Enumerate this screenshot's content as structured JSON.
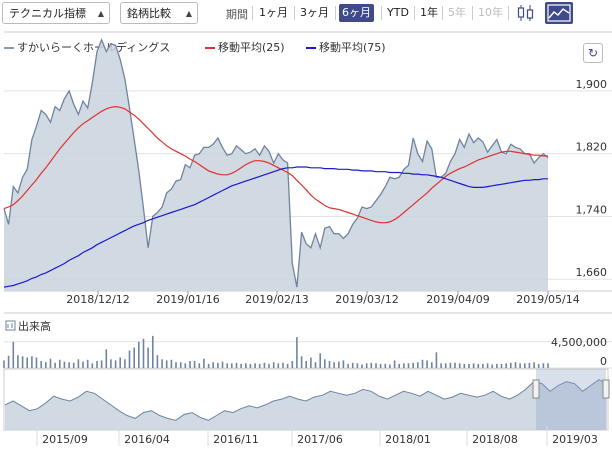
{
  "toolbar": {
    "technical_label": "テクニカル指標",
    "compare_label": "銘柄比較",
    "period_label": "期間",
    "periods": [
      "1ヶ月",
      "3ヶ月",
      "6ヶ月",
      "YTD",
      "1年",
      "5年",
      "10年"
    ],
    "active_period": "6ヶ月",
    "disabled_periods": [
      "5年",
      "10年"
    ],
    "chart_type_icons": [
      "candlestick-icon",
      "area-chart-icon"
    ],
    "active_chart_icon": "area-chart-icon",
    "accent": "#3e4a8a"
  },
  "legend": {
    "price": "すかいらーくホールディングス",
    "ma25": "移動平均(25)",
    "ma75": "移動平均(75)"
  },
  "volume_label": "出来高",
  "chart_data": [
    {
      "type": "area",
      "title": "",
      "x_tick_labels": [
        "2018/12/12",
        "2019/01/16",
        "2019/02/13",
        "2019/03/12",
        "2019/04/09",
        "2019/05/14"
      ],
      "y_tick_labels": [
        "1,660",
        "1,740",
        "1,820",
        "1,900"
      ],
      "ylim": [
        1645,
        1975
      ],
      "grid": true,
      "series": [
        {
          "name": "すかいらーくホールディングス",
          "color": "#8a9bb0",
          "values": [
            1750,
            1730,
            1778,
            1770,
            1790,
            1800,
            1838,
            1855,
            1875,
            1870,
            1860,
            1880,
            1875,
            1890,
            1900,
            1883,
            1870,
            1887,
            1878,
            1910,
            1950,
            1965,
            1950,
            1960,
            1958,
            1940,
            1915,
            1878,
            1838,
            1798,
            1750,
            1700,
            1740,
            1745,
            1752,
            1770,
            1775,
            1785,
            1787,
            1806,
            1802,
            1818,
            1820,
            1828,
            1828,
            1832,
            1840,
            1828,
            1818,
            1820,
            1830,
            1825,
            1820,
            1822,
            1826,
            1818,
            1830,
            1823,
            1808,
            1820,
            1812,
            1808,
            1680,
            1650,
            1720,
            1705,
            1700,
            1718,
            1700,
            1725,
            1727,
            1718,
            1718,
            1712,
            1718,
            1730,
            1738,
            1752,
            1750,
            1752,
            1760,
            1768,
            1778,
            1790,
            1788,
            1790,
            1800,
            1805,
            1840,
            1820,
            1810,
            1836,
            1826,
            1790,
            1790,
            1795,
            1810,
            1820,
            1838,
            1828,
            1845,
            1834,
            1840,
            1835,
            1822,
            1830,
            1838,
            1822,
            1820,
            1832,
            1828,
            1826,
            1820,
            1820,
            1808,
            1815,
            1820,
            1815
          ]
        },
        {
          "name": "移動平均(25)",
          "color": "#e03030",
          "values": [
            1750,
            1752,
            1755,
            1760,
            1766,
            1773,
            1780,
            1787,
            1795,
            1802,
            1810,
            1818,
            1826,
            1833,
            1840,
            1847,
            1853,
            1858,
            1862,
            1866,
            1870,
            1874,
            1877,
            1879,
            1880,
            1879,
            1877,
            1873,
            1869,
            1864,
            1858,
            1852,
            1846,
            1840,
            1835,
            1830,
            1826,
            1823,
            1820,
            1817,
            1813,
            1810,
            1806,
            1802,
            1798,
            1796,
            1794,
            1793,
            1793,
            1795,
            1798,
            1802,
            1806,
            1809,
            1811,
            1811,
            1810,
            1808,
            1805,
            1802,
            1799,
            1796,
            1792,
            1786,
            1780,
            1774,
            1767,
            1762,
            1758,
            1754,
            1751,
            1750,
            1749,
            1747,
            1745,
            1743,
            1741,
            1739,
            1737,
            1735,
            1733,
            1732,
            1732,
            1733,
            1736,
            1740,
            1745,
            1750,
            1755,
            1760,
            1765,
            1770,
            1776,
            1781,
            1786,
            1791,
            1795,
            1798,
            1801,
            1803,
            1806,
            1809,
            1812,
            1814,
            1816,
            1818,
            1820,
            1822,
            1823,
            1823,
            1822,
            1821,
            1820,
            1819,
            1818,
            1818,
            1817,
            1817
          ]
        },
        {
          "name": "移動平均(75)",
          "color": "#1a1acc",
          "values": [
            1650,
            1651,
            1652,
            1654,
            1656,
            1658,
            1661,
            1663,
            1666,
            1668,
            1671,
            1674,
            1677,
            1680,
            1684,
            1687,
            1690,
            1694,
            1697,
            1700,
            1704,
            1707,
            1710,
            1713,
            1716,
            1719,
            1722,
            1725,
            1728,
            1730,
            1732,
            1735,
            1737,
            1739,
            1741,
            1743,
            1745,
            1747,
            1749,
            1751,
            1753,
            1755,
            1758,
            1761,
            1764,
            1767,
            1770,
            1773,
            1776,
            1779,
            1781,
            1783,
            1785,
            1787,
            1789,
            1791,
            1793,
            1795,
            1797,
            1799,
            1801,
            1802,
            1802,
            1803,
            1803,
            1803,
            1802,
            1802,
            1802,
            1801,
            1801,
            1801,
            1800,
            1800,
            1800,
            1799,
            1799,
            1798,
            1798,
            1798,
            1797,
            1797,
            1797,
            1796,
            1796,
            1796,
            1795,
            1795,
            1794,
            1794,
            1793,
            1793,
            1792,
            1791,
            1790,
            1788,
            1786,
            1784,
            1782,
            1780,
            1778,
            1777,
            1777,
            1777,
            1778,
            1779,
            1780,
            1781,
            1782,
            1783,
            1784,
            1785,
            1786,
            1786,
            1787,
            1787,
            1788,
            1788
          ]
        }
      ]
    },
    {
      "type": "bar",
      "title": "出来高",
      "y_tick_labels": [
        "4,500,000",
        "0"
      ],
      "ylim": [
        0,
        6000000
      ],
      "values": [
        1300000,
        2100000,
        4500000,
        2200000,
        2000000,
        1800000,
        2000000,
        1800000,
        1200000,
        1000000,
        1600000,
        900000,
        1400000,
        1100000,
        1000000,
        900000,
        1500000,
        1100000,
        1400000,
        800000,
        1200000,
        1300000,
        3200000,
        1500000,
        1300000,
        1800000,
        1500000,
        3000000,
        3500000,
        4500000,
        5000000,
        3500000,
        5500000,
        2200000,
        1500000,
        1300000,
        1400000,
        1000000,
        1000000,
        800000,
        1200000,
        1200000,
        800000,
        1600000,
        700000,
        1000000,
        900000,
        1100000,
        800000,
        800000,
        900000,
        700000,
        800000,
        700000,
        800000,
        700000,
        900000,
        700000,
        1000000,
        800000,
        900000,
        700000,
        1200000,
        5300000,
        2000000,
        1200000,
        1800000,
        1000000,
        2500000,
        1500000,
        1200000,
        1000000,
        1100000,
        1300000,
        700000,
        900000,
        800000,
        600000,
        800000,
        900000,
        800000,
        700000,
        700000,
        600000,
        1300000,
        700000,
        800000,
        800000,
        900000,
        1000000,
        1400000,
        1300000,
        1000000,
        2700000,
        800000,
        800000,
        900000,
        900000,
        800000,
        700000,
        700000,
        800000,
        700000,
        700000,
        800000,
        600000,
        700000,
        700000,
        800000,
        900000,
        1000000,
        800000,
        800000,
        900000,
        1000000,
        700000,
        800000,
        800000
      ]
    },
    {
      "type": "area",
      "title": "",
      "x_tick_labels": [
        "2015/09",
        "2016/04",
        "2016/11",
        "2017/06",
        "2018/01",
        "2018/08",
        "2019/03"
      ],
      "ylim": [
        1300,
        1900
      ],
      "series": [
        {
          "name": "navigator",
          "color": "#8a9bb0",
          "values": [
            1560,
            1600,
            1550,
            1500,
            1520,
            1580,
            1650,
            1620,
            1600,
            1640,
            1700,
            1680,
            1620,
            1560,
            1500,
            1450,
            1420,
            1480,
            1500,
            1450,
            1420,
            1400,
            1460,
            1480,
            1430,
            1400,
            1450,
            1500,
            1480,
            1520,
            1550,
            1530,
            1560,
            1600,
            1620,
            1650,
            1620,
            1600,
            1640,
            1660,
            1700,
            1680,
            1660,
            1680,
            1720,
            1700,
            1650,
            1620,
            1660,
            1700,
            1680,
            1650,
            1700,
            1660,
            1620,
            1640,
            1680,
            1660,
            1640,
            1660,
            1700,
            1650,
            1620,
            1660,
            1720,
            1800,
            1780,
            1700,
            1760,
            1800,
            1780,
            1700,
            1760,
            1820,
            1780
          ]
        }
      ]
    }
  ]
}
